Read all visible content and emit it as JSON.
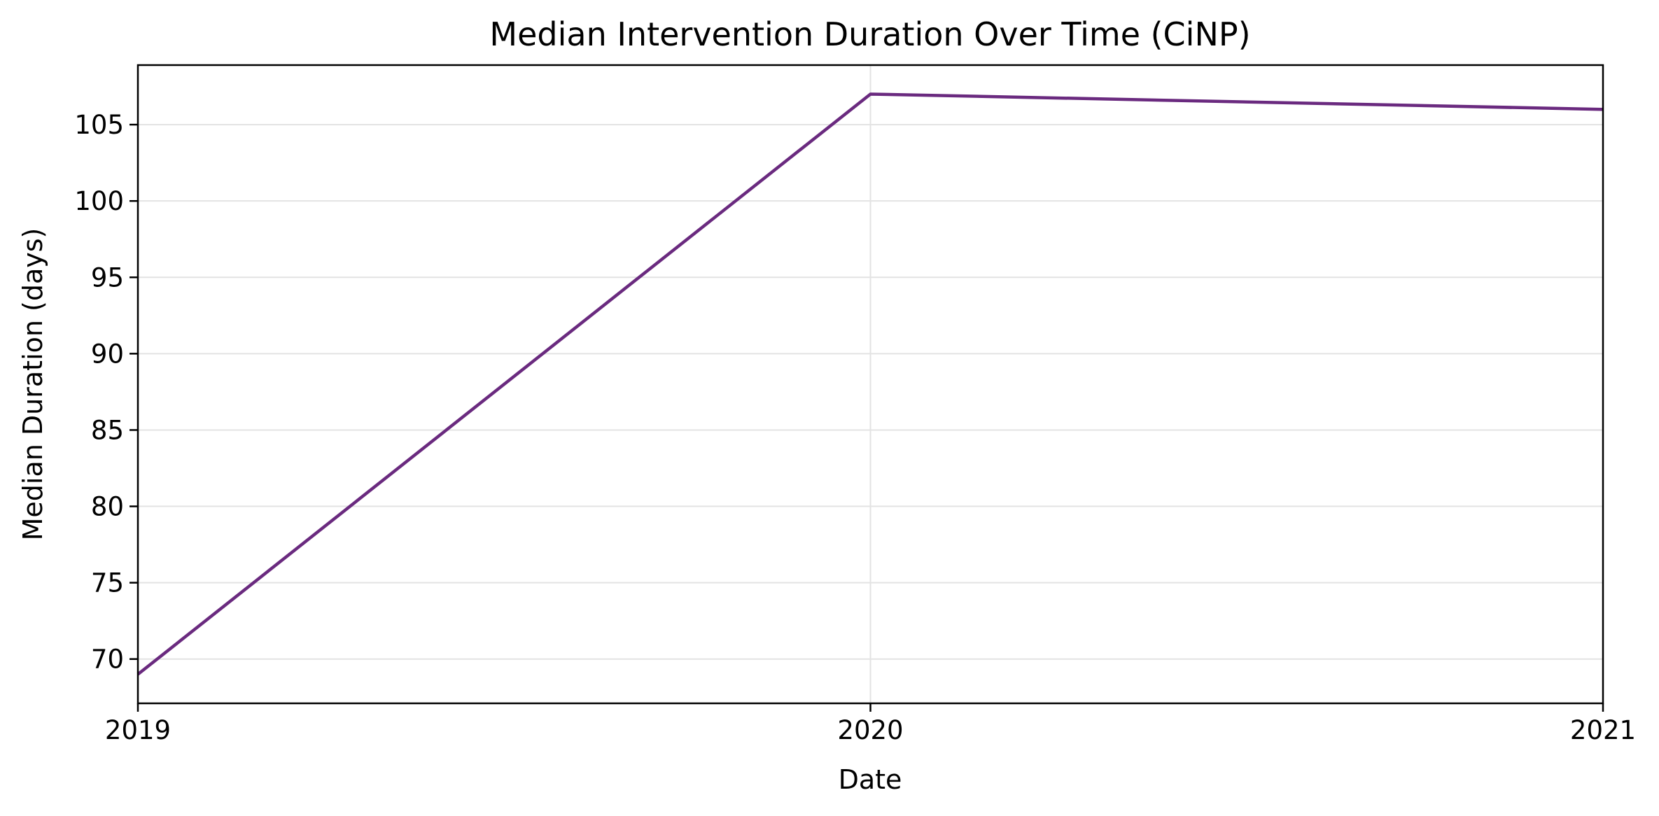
{
  "chart_data": {
    "type": "line",
    "title": "Median Intervention Duration Over Time (CiNP)",
    "xlabel": "Date",
    "ylabel": "Median Duration (days)",
    "x": [
      2019,
      2020,
      2021
    ],
    "x_tick_labels": [
      "2019",
      "2020",
      "2021"
    ],
    "xlim": [
      2019,
      2021
    ],
    "y_ticks": [
      70,
      75,
      80,
      85,
      90,
      95,
      100,
      105
    ],
    "y_tick_labels": [
      "70",
      "75",
      "80",
      "85",
      "90",
      "95",
      "100",
      "105"
    ],
    "ylim": [
      67.1,
      108.9
    ],
    "series": [
      {
        "values": [
          69,
          107,
          106
        ],
        "color": "#6a2a7f"
      }
    ],
    "grid": true
  }
}
